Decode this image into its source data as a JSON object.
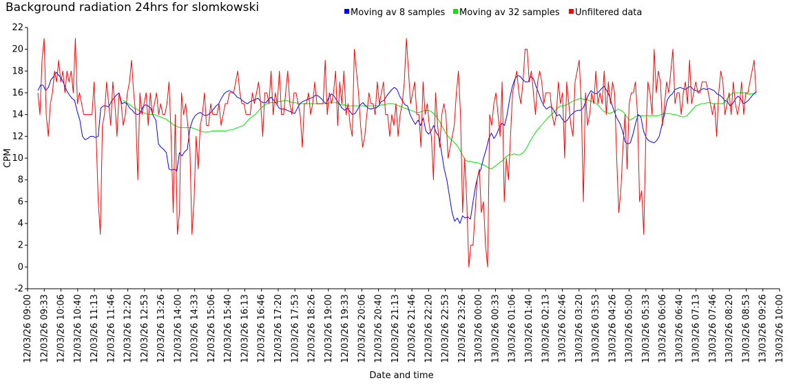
{
  "chart_data": {
    "type": "line",
    "title": "Background radiation 24hrs for slomkowski",
    "xlabel": "Date and time",
    "ylabel": "CPM",
    "ylim": [
      -2,
      22
    ],
    "yticks": [
      -2,
      0,
      2,
      4,
      6,
      8,
      10,
      12,
      14,
      16,
      18,
      20,
      22
    ],
    "x_tick_labels": [
      "12/03/26 09:00",
      "12/03/26 09:33",
      "12/03/26 10:06",
      "12/03/26 10:40",
      "12/03/26 11:13",
      "12/03/26 11:46",
      "12/03/26 12:20",
      "12/03/26 12:53",
      "12/03/26 13:26",
      "12/03/26 14:00",
      "12/03/26 14:33",
      "12/03/26 15:06",
      "12/03/26 15:40",
      "12/03/26 16:13",
      "12/03/26 16:46",
      "12/03/26 17:20",
      "12/03/26 17:53",
      "12/03/26 18:26",
      "12/03/26 19:00",
      "12/03/26 19:33",
      "12/03/26 20:06",
      "12/03/26 20:40",
      "12/03/26 21:13",
      "12/03/26 21:46",
      "12/03/26 22:20",
      "12/03/26 22:53",
      "12/03/26 23:26",
      "13/03/26 00:00",
      "13/03/26 00:33",
      "13/03/26 01:06",
      "13/03/26 01:40",
      "13/03/26 02:13",
      "13/03/26 02:46",
      "13/03/26 03:20",
      "13/03/26 03:53",
      "13/03/26 04:26",
      "13/03/26 05:00",
      "13/03/26 05:33",
      "13/03/26 06:06",
      "13/03/26 06:40",
      "13/03/26 07:13",
      "13/03/26 07:46",
      "13/03/26 08:20",
      "13/03/26 08:53",
      "13/03/26 09:26",
      "13/03/26 10:00"
    ],
    "legend_position": "top",
    "grid": false,
    "series": [
      {
        "name": "Moving av 8 samples",
        "color": "#0000ff",
        "values": [
          16.2,
          16.7,
          16.7,
          16.2,
          16.5,
          17.2,
          17.5,
          17.9,
          17.6,
          17.3,
          16.8,
          16.2,
          15.8,
          15.5,
          15.3,
          14.3,
          13.5,
          12.0,
          11.7,
          11.8,
          12.0,
          12.0,
          11.9,
          12.0,
          14.6,
          14.8,
          14.8,
          14.7,
          15.2,
          15.5,
          15.8,
          16.0,
          15.0,
          15.1,
          15.0,
          14.6,
          14.4,
          14.1,
          14.0,
          14.1,
          14.7,
          14.9,
          14.8,
          14.6,
          13.9,
          13.5,
          11.3,
          11.0,
          10.8,
          10.5,
          9.0,
          8.9,
          9.0,
          8.8,
          10.5,
          10.2,
          10.6,
          10.8,
          12.7,
          13.5,
          13.9,
          14.1,
          14.2,
          14.0,
          13.9,
          14.0,
          14.2,
          14.5,
          14.8,
          15.0,
          15.5,
          15.9,
          16.1,
          16.2,
          16.1,
          15.9,
          15.6,
          15.5,
          15.3,
          15.1,
          15.0,
          15.2,
          15.3,
          15.4,
          15.5,
          15.2,
          15.1,
          15.1,
          15.4,
          15.6,
          15.3,
          15.0,
          14.6,
          14.5,
          14.5,
          14.4,
          14.3,
          14.2,
          14.1,
          14.6,
          15.0,
          15.2,
          15.3,
          15.4,
          15.5,
          15.6,
          15.8,
          15.7,
          15.5,
          15.2,
          15.0,
          15.6,
          15.9,
          15.7,
          15.3,
          15.0,
          14.6,
          14.4,
          14.6,
          14.3,
          14.0,
          14.1,
          14.5,
          14.9,
          15.1,
          14.8,
          14.6,
          14.5,
          14.6,
          14.6,
          14.8,
          15.2,
          15.3,
          15.7,
          16.0,
          16.3,
          16.5,
          16.3,
          15.7,
          15.3,
          14.9,
          14.8,
          14.0,
          13.5,
          13.1,
          13.5,
          13.0,
          13.7,
          12.5,
          12.2,
          12.5,
          13.0,
          12.3,
          12.0,
          10.5,
          9.0,
          8.0,
          6.5,
          5.0,
          4.2,
          4.5,
          4.0,
          4.7,
          4.5,
          4.6,
          4.4,
          6.0,
          7.5,
          8.5,
          9.0,
          10.0,
          10.8,
          11.8,
          12.3,
          11.8,
          12.2,
          12.8,
          13.2,
          13.0,
          14.0,
          15.5,
          16.6,
          17.3,
          17.6,
          17.5,
          17.2,
          17.0,
          17.0,
          17.5,
          17.3,
          16.6,
          16.0,
          15.3,
          14.8,
          14.5,
          14.7,
          14.7,
          14.3,
          13.9,
          14.0,
          13.6,
          13.3,
          13.5,
          13.9,
          14.1,
          14.3,
          14.4,
          14.4,
          14.6,
          15.2,
          15.8,
          16.2,
          16.0,
          15.9,
          16.1,
          16.4,
          16.6,
          16.2,
          15.7,
          14.9,
          14.2,
          13.6,
          13.2,
          12.5,
          11.5,
          11.3,
          11.4,
          12.2,
          13.2,
          14.0,
          13.8,
          12.5,
          11.9,
          11.6,
          11.5,
          11.4,
          11.6,
          12.0,
          13.0,
          14.0,
          15.3,
          15.7,
          15.9,
          16.3,
          16.4,
          16.5,
          16.4,
          16.3,
          16.5,
          16.6,
          16.3,
          16.2,
          16.1,
          16.3,
          16.4,
          16.3,
          16.4,
          16.3,
          16.2,
          15.9,
          15.8,
          15.6,
          15.3,
          15.2,
          14.8,
          15.0,
          15.4,
          15.7,
          15.5,
          15.0,
          15.1,
          15.3,
          15.6,
          15.9,
          16.1
        ]
      },
      {
        "name": "Moving av 32 samples",
        "color": "#00e600",
        "values": [
          15.3,
          15.2,
          15.0,
          14.8,
          14.6,
          14.5,
          14.3,
          14.2,
          14.1,
          14.0,
          14.0,
          14.0,
          13.9,
          13.8,
          13.7,
          13.6,
          13.4,
          13.2,
          13.0,
          12.9,
          12.8,
          12.8,
          12.8,
          12.8,
          12.8,
          12.7,
          12.6,
          12.5,
          12.4,
          12.4,
          12.4,
          12.5,
          12.5,
          12.5,
          12.5,
          12.5,
          12.5,
          12.6,
          12.6,
          12.7,
          12.8,
          12.9,
          13.0,
          13.3,
          13.6,
          13.8,
          14.0,
          14.3,
          14.6,
          14.8,
          15.0,
          15.1,
          15.1,
          15.1,
          15.2,
          15.2,
          15.3,
          15.3,
          15.2,
          15.1,
          15.1,
          15.0,
          15.0,
          15.0,
          15.0,
          15.0,
          15.0,
          15.0,
          15.0,
          15.0,
          15.0,
          15.0,
          15.1,
          15.1,
          15.1,
          15.0,
          14.9,
          14.9,
          14.8,
          14.8,
          14.8,
          14.8,
          14.8,
          14.8,
          14.8,
          14.8,
          14.8,
          14.8,
          14.8,
          14.8,
          14.9,
          14.9,
          15.0,
          15.0,
          15.0,
          14.9,
          14.8,
          14.7,
          14.6,
          14.5,
          14.4,
          14.3,
          14.2,
          14.2,
          14.3,
          14.4,
          14.4,
          14.3,
          14.1,
          13.8,
          13.4,
          12.9,
          12.4,
          12.0,
          11.7,
          11.5,
          11.2,
          10.8,
          10.3,
          9.8,
          9.7,
          9.7,
          9.6,
          9.6,
          9.5,
          9.4,
          9.3,
          9.1,
          9.0,
          9.2,
          9.4,
          9.6,
          9.8,
          10.1,
          10.3,
          10.3,
          10.4,
          10.3,
          10.3,
          10.5,
          10.8,
          11.3,
          11.8,
          12.2,
          12.6,
          12.9,
          13.2,
          13.5,
          13.8,
          14.0,
          14.3,
          14.6,
          14.8,
          14.8,
          14.9,
          15.0,
          15.2,
          15.3,
          15.4,
          15.5,
          15.4,
          15.4,
          15.3,
          15.2,
          15.1,
          14.9,
          14.6,
          14.3,
          14.2,
          14.1,
          14.2,
          14.3,
          14.5,
          14.4,
          14.2,
          13.8,
          13.5,
          13.6,
          13.8,
          13.9,
          13.9,
          13.9,
          13.9,
          13.9,
          13.9,
          13.9,
          13.9,
          14.0,
          14.1,
          14.1,
          14.1,
          14.0,
          14.0,
          13.9,
          13.8,
          13.8,
          13.9,
          14.2,
          14.5,
          14.8,
          14.9,
          15.0,
          15.0,
          15.1,
          15.1,
          15.0,
          15.0,
          15.0,
          15.0,
          15.1,
          15.5,
          15.8,
          16.0,
          16.0,
          16.0,
          16.0,
          16.0,
          15.9,
          15.9,
          15.9,
          15.9
        ]
      },
      {
        "name": "Unfiltered data",
        "color": "#ff0000",
        "values": [
          16,
          14,
          19,
          21,
          14,
          12,
          15,
          16,
          18,
          17,
          19,
          17,
          18,
          16,
          18,
          17,
          18,
          16,
          21,
          15,
          16,
          15,
          14,
          14,
          14,
          14,
          14,
          17,
          12,
          6,
          3,
          13,
          14,
          17,
          15,
          13,
          17,
          15,
          12,
          16,
          15,
          13,
          14,
          16,
          17,
          19,
          16,
          14,
          8,
          16,
          14,
          15,
          16,
          13,
          16,
          14,
          15,
          16,
          14,
          15,
          14,
          14,
          15,
          17,
          12,
          5,
          14,
          3,
          5,
          16,
          14,
          15,
          13,
          11,
          3,
          6,
          12,
          9,
          13,
          14,
          16,
          13,
          13,
          15,
          14,
          14,
          14,
          15,
          13,
          14,
          15,
          15,
          16,
          16,
          16,
          17,
          18,
          16,
          15,
          15,
          14,
          14,
          14,
          16,
          15,
          16,
          17,
          15,
          12,
          16,
          16,
          15,
          18,
          14,
          16,
          15,
          18,
          14,
          14,
          16,
          18,
          15,
          14,
          16,
          16,
          15,
          14,
          11,
          15,
          15,
          16,
          14,
          15,
          17,
          15,
          15,
          15,
          15,
          19,
          14,
          16,
          15,
          16,
          18,
          13,
          17,
          15,
          18,
          14,
          15,
          13,
          12,
          20,
          18,
          16,
          13,
          11,
          12,
          14,
          16,
          15,
          15,
          14,
          17,
          15,
          16,
          17,
          14,
          14,
          12,
          14,
          13,
          15,
          12,
          14,
          15,
          17,
          21,
          18,
          15,
          16,
          17,
          14,
          14,
          11,
          17,
          14,
          15,
          13,
          12,
          8,
          16,
          13,
          11,
          14,
          15,
          14,
          10,
          11,
          12,
          13,
          16,
          18,
          14,
          5,
          10,
          6,
          0,
          2,
          2,
          5,
          8,
          9,
          5,
          6,
          2,
          0,
          14,
          13,
          15,
          16,
          14,
          12,
          17,
          6,
          10,
          8,
          12,
          16,
          17,
          18,
          16,
          15,
          17,
          20,
          20,
          17,
          18,
          16,
          14,
          17,
          18,
          17,
          15,
          16,
          16,
          16,
          14,
          13,
          14,
          17,
          15,
          16,
          10,
          17,
          15,
          13,
          12,
          17,
          18,
          19,
          15,
          6,
          16,
          13,
          14,
          16,
          15,
          18,
          15,
          16,
          15,
          18,
          14,
          17,
          15,
          17,
          16,
          10,
          5,
          7,
          11,
          14,
          9,
          15,
          16,
          16,
          17,
          14,
          6,
          7,
          3,
          12,
          17,
          16,
          14,
          20,
          16,
          18,
          17,
          13,
          15,
          17,
          16,
          18,
          20,
          15,
          16,
          16,
          14,
          16,
          17,
          15,
          19,
          15,
          16,
          17,
          16,
          16,
          17,
          17,
          17,
          16,
          15,
          14,
          15,
          12,
          16,
          18,
          17,
          14,
          15,
          16,
          14,
          17,
          15,
          14,
          15,
          17,
          14,
          16,
          16,
          17,
          18,
          19,
          16
        ]
      }
    ]
  }
}
